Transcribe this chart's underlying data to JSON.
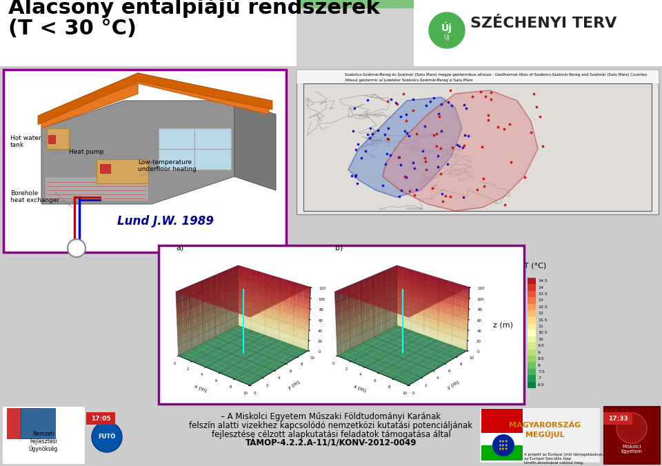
{
  "title_line1": "Alacsony entalpiájú rendszerek",
  "title_line2": "(T < 30 °C)",
  "background_color": "#d0d0d0",
  "purple_border": "#8B008B",
  "footer_text1": "– A Miskolci Egyetem Műszaki Földtudományi Karának",
  "footer_text2": "felszín alatti vizekhez kapcsolódó nemzetközi kutatási potenciáljának",
  "footer_text3": "fejlesztése célzott alapkutatási feladatok támogatása által",
  "footer_text4": "TÁMOP-4.2.2.A-11/1/KONV-2012-0049",
  "lund_text": "Lund J.W. 1989",
  "main_content_bg": "#cccccc",
  "green_bar_color": "#7dc47d",
  "house_panel_bg": "#ffffff",
  "map_panel_bg": "#f0f0f0",
  "vis_panel_bg": "#ffffff",
  "footer_bg": "#cccccc",
  "orange_color": "#E87722",
  "gray_house": "#888888",
  "blue_pipe": "#0000cc",
  "red_pipe": "#cc0000"
}
